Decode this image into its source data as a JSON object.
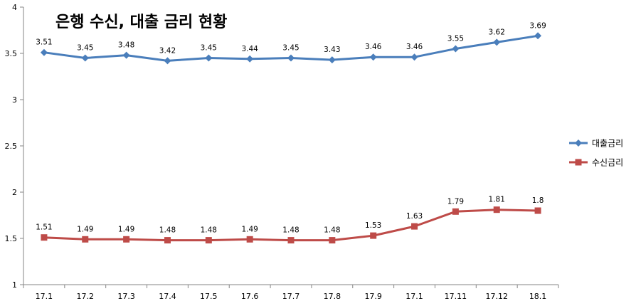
{
  "chart_data": {
    "type": "line",
    "title": "은행 수신, 대출 금리 현황",
    "categories": [
      "17.1",
      "17.2",
      "17.3",
      "17.4",
      "17.5",
      "17.6",
      "17.7",
      "17.8",
      "17.9",
      "17.1",
      "17.11",
      "17.12",
      "18.1"
    ],
    "ylim": [
      1,
      4
    ],
    "yticks": [
      "1",
      "1.5",
      "2",
      "2.5",
      "3",
      "3.5",
      "4"
    ],
    "grid": false,
    "legend_position": "right",
    "series": [
      {
        "name": "대출금리",
        "color": "#4a7ebb",
        "marker": "diamond",
        "values": [
          3.51,
          3.45,
          3.48,
          3.42,
          3.45,
          3.44,
          3.45,
          3.43,
          3.46,
          3.46,
          3.55,
          3.62,
          3.69
        ],
        "labels": [
          "3.51",
          "3.45",
          "3.48",
          "3.42",
          "3.45",
          "3.44",
          "3.45",
          "3.43",
          "3.46",
          "3.46",
          "3.55",
          "3.62",
          "3.69"
        ]
      },
      {
        "name": "수신금리",
        "color": "#be4b48",
        "marker": "square",
        "values": [
          1.51,
          1.49,
          1.49,
          1.48,
          1.48,
          1.49,
          1.48,
          1.48,
          1.53,
          1.63,
          1.79,
          1.81,
          1.8
        ],
        "labels": [
          "1.51",
          "1.49",
          "1.49",
          "1.48",
          "1.48",
          "1.49",
          "1.48",
          "1.48",
          "1.53",
          "1.63",
          "1.79",
          "1.81",
          "1.8"
        ]
      }
    ]
  }
}
